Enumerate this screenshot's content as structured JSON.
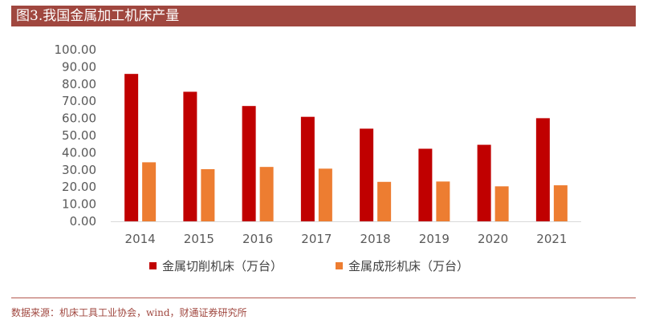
{
  "header": {
    "title": "图3.我国金属加工机床产量"
  },
  "footer": {
    "source": "数据来源：机床工具工业协会，wind，财通证券研究所"
  },
  "colors": {
    "title_bar": "#a0473f",
    "series_1": "#c00000",
    "series_2": "#ed7d31"
  },
  "chart_data": {
    "type": "bar",
    "categories": [
      "2014",
      "2015",
      "2016",
      "2017",
      "2018",
      "2019",
      "2020",
      "2021"
    ],
    "series": [
      {
        "name": "金属切削机床（万台）",
        "values": [
          85.9,
          75.5,
          67.2,
          60.9,
          54.0,
          42.3,
          44.6,
          60.1
        ]
      },
      {
        "name": "金属成形机床（万台）",
        "values": [
          34.4,
          30.4,
          31.7,
          30.7,
          23.0,
          23.2,
          20.4,
          21.0
        ]
      }
    ],
    "yticks": [
      "0.00",
      "10.00",
      "20.00",
      "30.00",
      "40.00",
      "50.00",
      "60.00",
      "70.00",
      "80.00",
      "90.00",
      "100.00"
    ],
    "ylim": [
      0,
      100
    ],
    "grid": false,
    "legend": "bottom"
  }
}
